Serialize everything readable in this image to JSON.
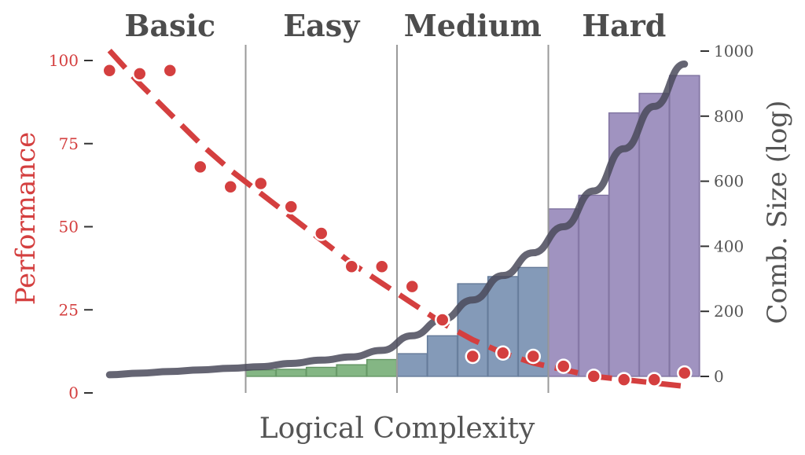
{
  "chart_data": {
    "type": "bar",
    "xlabel": "Logical Complexity",
    "ylabel_left": "Performance",
    "ylabel_right": "Comb. Size (log)",
    "ylim_left": [
      0,
      100
    ],
    "ylim_right": [
      0,
      1000
    ],
    "yticks_left": [
      0,
      25,
      50,
      75,
      100
    ],
    "yticks_right": [
      0,
      200,
      400,
      600,
      800,
      1000
    ],
    "grid": false,
    "regions": [
      {
        "label": "Basic",
        "start": 0,
        "end": 5,
        "color": "#6fa96f"
      },
      {
        "label": "Easy",
        "start": 5,
        "end": 10,
        "color": "#6fa96f"
      },
      {
        "label": "Medium",
        "start": 10,
        "end": 15,
        "color": "#6f88ac"
      },
      {
        "label": "Hard",
        "start": 15,
        "end": 20,
        "color": "#8f80b5"
      }
    ],
    "bars": {
      "name": "Comb. Size",
      "values": [
        0,
        0,
        0,
        0,
        0,
        20,
        22,
        28,
        36,
        52,
        70,
        125,
        285,
        307,
        335,
        515,
        557,
        810,
        870,
        925
      ]
    },
    "performance_points": [
      97,
      96,
      97,
      68,
      62,
      63,
      56,
      48,
      38,
      38,
      32,
      22,
      11,
      12,
      11,
      8,
      5,
      4,
      4,
      6
    ],
    "performance_trend": [
      103,
      93,
      84,
      75,
      67,
      60,
      53,
      46,
      39,
      33,
      27,
      21,
      16,
      12,
      9,
      7,
      5,
      4,
      3,
      2
    ],
    "comb_size_curve": [
      5,
      10,
      15,
      20,
      25,
      30,
      40,
      50,
      60,
      80,
      125,
      175,
      235,
      310,
      380,
      460,
      570,
      700,
      830,
      960
    ],
    "colors": {
      "performance": "#d43f3f",
      "axis_text": "#555555",
      "curve": "#4a4a5a",
      "divider": "#9a9a9a"
    }
  }
}
